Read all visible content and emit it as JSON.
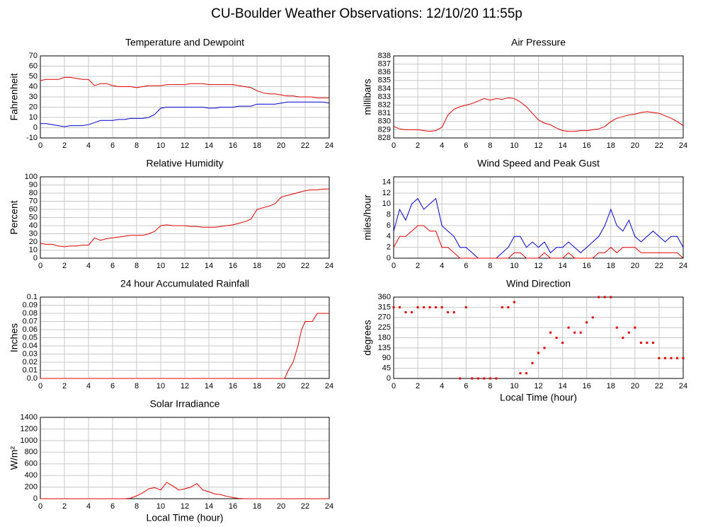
{
  "title": "CU-Boulder Weather Observations: 12/10/20 11:55p",
  "chart_data": [
    {
      "type": "line",
      "title": "Temperature and Dewpoint",
      "y_label": "Fahrenheit",
      "x": [
        0,
        0.5,
        1,
        1.5,
        2,
        2.5,
        3,
        3.5,
        4,
        4.5,
        5,
        5.5,
        6,
        6.5,
        7,
        7.5,
        8,
        8.5,
        9,
        9.5,
        10,
        10.5,
        11,
        11.5,
        12,
        12.5,
        13,
        13.5,
        14,
        14.5,
        15,
        15.5,
        16,
        16.5,
        17,
        17.5,
        18,
        18.5,
        19,
        19.5,
        20,
        20.5,
        21,
        21.5,
        22,
        22.5,
        23,
        23.5,
        24
      ],
      "series": [
        {
          "color": "#e00000",
          "values": [
            46,
            47,
            47,
            47,
            49,
            49,
            48,
            47,
            47,
            41,
            43,
            43,
            41,
            40,
            40,
            40,
            39,
            40,
            41,
            41,
            41,
            42,
            42,
            42,
            42,
            43,
            43,
            43,
            42,
            42,
            42,
            42,
            42,
            41,
            40,
            39,
            36,
            34,
            33,
            33,
            32,
            31,
            31,
            30,
            30,
            30,
            29,
            29,
            29
          ]
        },
        {
          "color": "#0000d0",
          "values": [
            4,
            4,
            3,
            2,
            1,
            2,
            2,
            2,
            3,
            5,
            7,
            7,
            7,
            8,
            8,
            9,
            9,
            9,
            10,
            13,
            19,
            20,
            20,
            20,
            20,
            20,
            20,
            20,
            19,
            19,
            20,
            20,
            20,
            21,
            21,
            21,
            23,
            23,
            23,
            23,
            24,
            25,
            25,
            25,
            25,
            25,
            25,
            25,
            24
          ]
        }
      ],
      "xlim": [
        0,
        24
      ],
      "xticks": [
        0,
        2,
        4,
        6,
        8,
        10,
        12,
        14,
        16,
        18,
        20,
        22,
        24
      ],
      "ylim": [
        -10,
        70
      ],
      "yticks": [
        -10,
        0,
        10,
        20,
        30,
        40,
        50,
        60,
        70
      ],
      "grid": true
    },
    {
      "type": "line",
      "title": "Relative Humidity",
      "y_label": "Percent",
      "x": [
        0,
        0.5,
        1,
        1.5,
        2,
        2.5,
        3,
        3.5,
        4,
        4.5,
        5,
        5.5,
        6,
        6.5,
        7,
        7.5,
        8,
        8.5,
        9,
        9.5,
        10,
        10.5,
        11,
        11.5,
        12,
        12.5,
        13,
        13.5,
        14,
        14.5,
        15,
        15.5,
        16,
        16.5,
        17,
        17.5,
        18,
        18.5,
        19,
        19.5,
        20,
        20.5,
        21,
        21.5,
        22,
        22.5,
        23,
        23.5,
        24
      ],
      "values": [
        18,
        17,
        17,
        15,
        14,
        15,
        15,
        16,
        16,
        25,
        22,
        24,
        25,
        26,
        27,
        28,
        28,
        28,
        30,
        33,
        40,
        41,
        40,
        40,
        40,
        39,
        39,
        38,
        38,
        38,
        39,
        40,
        41,
        43,
        45,
        48,
        60,
        62,
        64,
        67,
        75,
        77,
        79,
        81,
        83,
        84,
        84,
        85,
        85
      ],
      "color": "#e00000",
      "xlim": [
        0,
        24
      ],
      "xticks": [
        0,
        2,
        4,
        6,
        8,
        10,
        12,
        14,
        16,
        18,
        20,
        22,
        24
      ],
      "ylim": [
        0,
        100
      ],
      "yticks": [
        0,
        10,
        20,
        30,
        40,
        50,
        60,
        70,
        80,
        90,
        100
      ],
      "grid": true
    },
    {
      "type": "line",
      "title": "24 hour Accumulated Rainfall",
      "y_label": "Inches",
      "x": [
        0,
        20.3,
        20.6,
        21,
        21.4,
        21.7,
        22,
        22.6,
        23,
        24
      ],
      "values": [
        0,
        0,
        0.01,
        0.02,
        0.04,
        0.06,
        0.07,
        0.07,
        0.08,
        0.08
      ],
      "color": "#e00000",
      "xlim": [
        0,
        24
      ],
      "xticks": [
        0,
        2,
        4,
        6,
        8,
        10,
        12,
        14,
        16,
        18,
        20,
        22,
        24
      ],
      "ylim": [
        0,
        0.1
      ],
      "yticks": [
        {
          "value": 0,
          "label": "0.0"
        },
        0.01,
        0.02,
        0.03,
        0.04,
        0.05,
        0.06,
        0.07,
        0.08,
        0.09,
        0.1
      ],
      "grid": true
    },
    {
      "type": "line",
      "title": "Solar Irradiance",
      "y_label": "W/m²",
      "x_label": "Local Time (hour)",
      "x": [
        0,
        0.5,
        1,
        1.5,
        2,
        2.5,
        3,
        3.5,
        4,
        4.5,
        5,
        5.5,
        6,
        6.5,
        7,
        7.5,
        8,
        8.5,
        9,
        9.5,
        10,
        10.5,
        11,
        11.5,
        12,
        12.5,
        13,
        13.5,
        14,
        14.5,
        15,
        15.5,
        16,
        16.5,
        17,
        17.5,
        18,
        18.5,
        19,
        19.5,
        20,
        20.5,
        21,
        21.5,
        22,
        22.5,
        23,
        23.5,
        24
      ],
      "values": [
        0,
        0,
        0,
        0,
        0,
        0,
        0,
        0,
        0,
        0,
        0,
        0,
        0,
        0,
        0,
        10,
        50,
        100,
        170,
        190,
        150,
        280,
        220,
        150,
        170,
        200,
        260,
        150,
        120,
        80,
        70,
        40,
        20,
        5,
        0,
        0,
        0,
        0,
        0,
        0,
        0,
        0,
        0,
        0,
        0,
        0,
        0,
        0,
        0
      ],
      "color": "#e00000",
      "xlim": [
        0,
        24
      ],
      "xticks": [
        0,
        2,
        4,
        6,
        8,
        10,
        12,
        14,
        16,
        18,
        20,
        22,
        24
      ],
      "ylim": [
        0,
        1400
      ],
      "yticks": [
        0,
        200,
        400,
        600,
        800,
        1000,
        1200,
        1400
      ],
      "grid": true
    },
    {
      "type": "line",
      "title": "Air Pressure",
      "y_label": "millibars",
      "x": [
        0,
        0.5,
        1,
        1.5,
        2,
        2.5,
        3,
        3.5,
        4,
        4.5,
        5,
        5.5,
        6,
        6.5,
        7,
        7.5,
        8,
        8.5,
        9,
        9.5,
        10,
        10.5,
        11,
        11.5,
        12,
        12.5,
        13,
        13.5,
        14,
        14.5,
        15,
        15.5,
        16,
        16.5,
        17,
        17.5,
        18,
        18.5,
        19,
        19.5,
        20,
        20.5,
        21,
        21.5,
        22,
        22.5,
        23,
        23.5,
        24
      ],
      "values": [
        829.4,
        829.1,
        829,
        829,
        829,
        828.9,
        828.8,
        828.9,
        829.3,
        830.8,
        831.5,
        831.8,
        832,
        832.2,
        832.5,
        832.8,
        832.6,
        832.8,
        832.7,
        832.9,
        832.8,
        832.4,
        831.8,
        831,
        830.2,
        829.8,
        829.6,
        829.2,
        828.9,
        828.8,
        828.8,
        828.9,
        828.9,
        829,
        829.1,
        829.4,
        830,
        830.4,
        830.6,
        830.8,
        830.9,
        831.1,
        831.2,
        831.1,
        831,
        830.7,
        830.4,
        830,
        829.5
      ],
      "color": "#e00000",
      "xlim": [
        0,
        24
      ],
      "xticks": [
        0,
        2,
        4,
        6,
        8,
        10,
        12,
        14,
        16,
        18,
        20,
        22,
        24
      ],
      "ylim": [
        828,
        838
      ],
      "yticks": [
        828,
        829,
        830,
        831,
        832,
        833,
        834,
        835,
        836,
        837,
        838
      ],
      "grid": true
    },
    {
      "type": "line",
      "title": "Wind Speed and Peak Gust",
      "y_label": "miles/hour",
      "x": [
        0,
        0.5,
        1,
        1.5,
        2,
        2.5,
        3,
        3.5,
        4,
        4.5,
        5,
        5.5,
        6,
        6.5,
        7,
        7.5,
        8,
        8.5,
        9,
        9.5,
        10,
        10.5,
        11,
        11.5,
        12,
        12.5,
        13,
        13.5,
        14,
        14.5,
        15,
        15.5,
        16,
        16.5,
        17,
        17.5,
        18,
        18.5,
        19,
        19.5,
        20,
        20.5,
        21,
        21.5,
        22,
        22.5,
        23,
        23.5,
        24
      ],
      "series": [
        {
          "color": "#0000d0",
          "values": [
            5,
            9,
            7,
            10,
            11,
            9,
            10,
            11,
            6,
            5,
            4,
            2,
            2,
            1,
            0,
            0,
            0,
            0,
            1,
            2,
            4,
            4,
            2,
            3,
            2,
            3,
            1,
            2,
            2,
            3,
            2,
            1,
            2,
            3,
            4,
            6,
            9,
            6,
            5,
            7,
            4,
            3,
            4,
            5,
            4,
            3,
            4,
            4,
            2
          ]
        },
        {
          "color": "#e00000",
          "values": [
            2,
            4,
            4,
            5,
            6,
            6,
            5,
            5,
            2,
            2,
            1,
            0,
            0,
            0,
            0,
            0,
            0,
            0,
            0,
            0,
            1,
            1,
            0,
            0,
            0,
            1,
            0,
            0,
            0,
            1,
            0,
            0,
            0,
            0,
            1,
            1,
            2,
            1,
            2,
            2,
            2,
            1,
            1,
            1,
            1,
            1,
            1,
            1,
            0
          ]
        }
      ],
      "xlim": [
        0,
        24
      ],
      "xticks": [
        0,
        2,
        4,
        6,
        8,
        10,
        12,
        14,
        16,
        18,
        20,
        22,
        24
      ],
      "ylim": [
        0,
        15
      ],
      "yticks": [
        0,
        2,
        4,
        6,
        8,
        10,
        12,
        14
      ],
      "grid": true
    },
    {
      "type": "scatter",
      "title": "Wind Direction",
      "y_label": "degrees",
      "x_label": "Local Time (hour)",
      "x": [
        0,
        0.5,
        1,
        1.5,
        2,
        2.5,
        3,
        3.5,
        4,
        4.5,
        5,
        5.5,
        6,
        6.5,
        7,
        7.5,
        8,
        8.5,
        9,
        9.5,
        10,
        10.5,
        11,
        11.5,
        12,
        12.5,
        13,
        13.5,
        14,
        14.5,
        15,
        15.5,
        16,
        16.5,
        17,
        17.5,
        18,
        18.5,
        19,
        19.5,
        20,
        20.5,
        21,
        21.5,
        22,
        22.5,
        23,
        23.5,
        24
      ],
      "values": [
        315,
        315,
        293,
        293,
        315,
        315,
        315,
        315,
        315,
        293,
        293,
        0,
        315,
        0,
        0,
        0,
        0,
        0,
        315,
        315,
        338,
        23,
        23,
        68,
        113,
        135,
        203,
        180,
        158,
        225,
        203,
        203,
        248,
        270,
        360,
        360,
        360,
        225,
        180,
        203,
        225,
        158,
        158,
        158,
        90,
        90,
        90,
        90,
        90
      ],
      "color": "#e00000",
      "xlim": [
        0,
        24
      ],
      "xticks": [
        0,
        2,
        4,
        6,
        8,
        10,
        12,
        14,
        16,
        18,
        20,
        22,
        24
      ],
      "ylim": [
        0,
        360
      ],
      "yticks": [
        0,
        45,
        90,
        135,
        180,
        225,
        270,
        315,
        360
      ],
      "grid": true
    }
  ]
}
